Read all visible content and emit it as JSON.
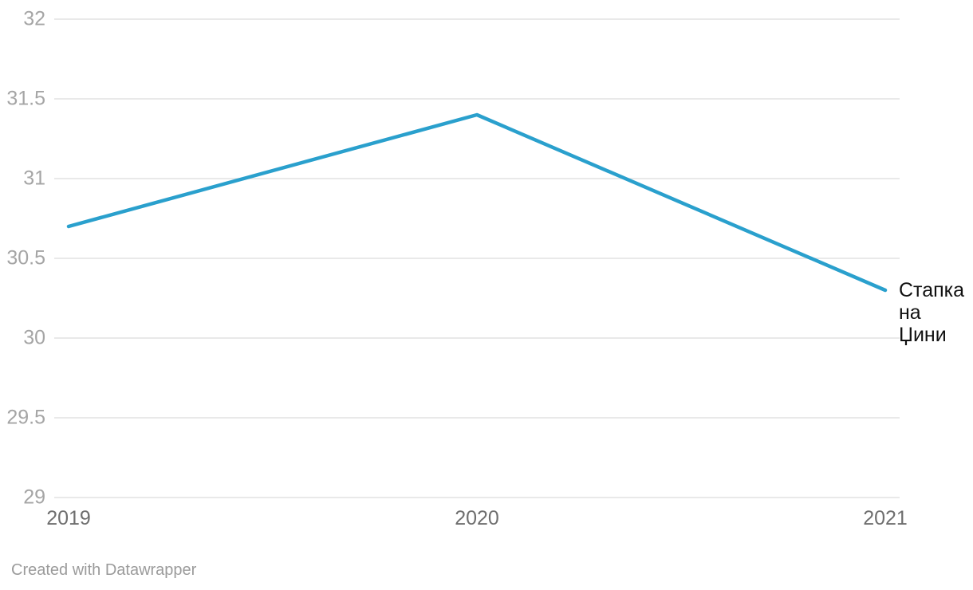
{
  "chart_data": {
    "type": "line",
    "title": "",
    "x": [
      "2019",
      "2020",
      "2021"
    ],
    "series": [
      {
        "name": "Стапка на Џини",
        "values": [
          30.7,
          31.4,
          30.3
        ],
        "label_lines": [
          "Стапка",
          "на",
          "Џини"
        ]
      }
    ],
    "ylim": [
      29,
      32
    ],
    "yticks": [
      32,
      31.5,
      31,
      30.5,
      30,
      29.5,
      29
    ],
    "xlabel": "",
    "ylabel": "",
    "grid": "horizontal",
    "legend_position": "end-of-line-label",
    "line_color": "#2aa0cd",
    "grid_color": "#e2e2e2",
    "ytick_color": "#a5a5a5",
    "xtick_color": "#6e6e6e",
    "label_color": "#111111"
  },
  "footer": {
    "credit": "Created with Datawrapper"
  }
}
